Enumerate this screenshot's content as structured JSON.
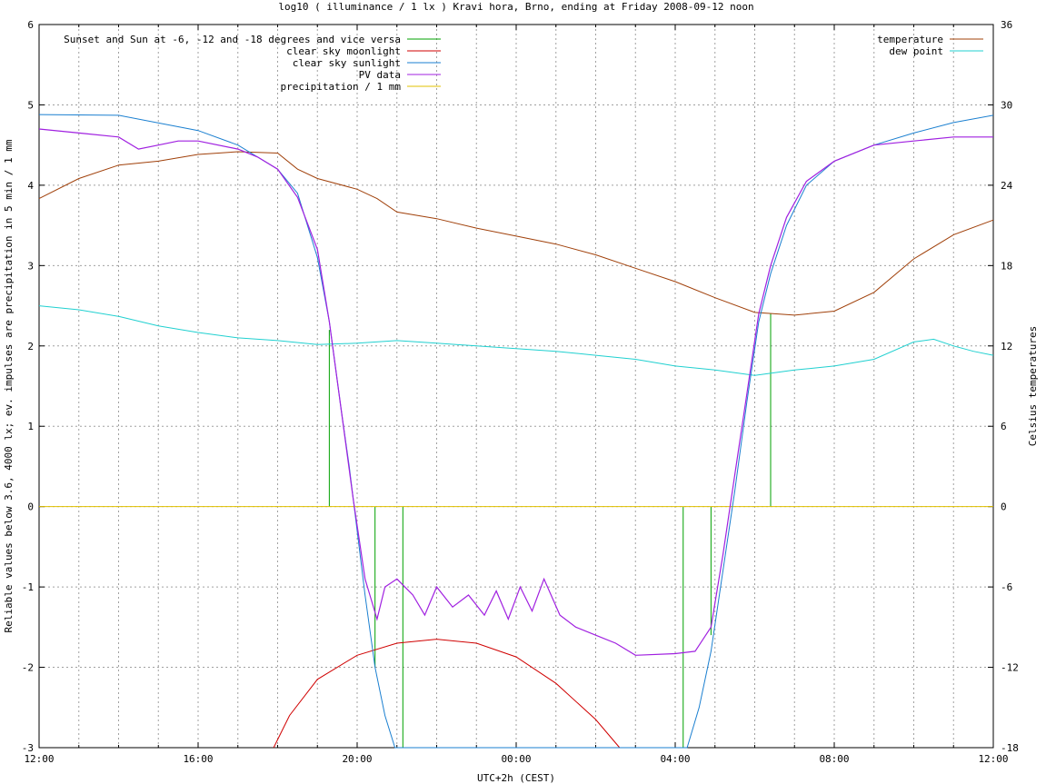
{
  "chart_data": {
    "type": "line",
    "title": "log10 ( illuminance / 1 lx ) Kravi hora, Brno, ending at Friday 2008-09-12 noon",
    "xlabel": "UTC+2h (CEST)",
    "ylabel": "Reliable values below 3.6, 4000 lx; ev. impulses are precipitation in 5 min / 1 mm",
    "y2label": "Celsius temperatures",
    "x_unit": "hours since 12:00",
    "xlim": [
      0,
      24
    ],
    "ylim": [
      -3,
      6
    ],
    "y2lim": [
      -18,
      36
    ],
    "x_tick_labels": [
      "12:00",
      "16:00",
      "20:00",
      "00:00",
      "04:00",
      "08:00",
      "12:00"
    ],
    "y_ticks": [
      "-3",
      "-2",
      "-1",
      "0",
      "1",
      "2",
      "3",
      "4",
      "5",
      "6"
    ],
    "y2_ticks": [
      "-18",
      "-12",
      "-6",
      "0",
      "6",
      "12",
      "18",
      "24",
      "30",
      "36"
    ],
    "grid": true,
    "legend_left": [
      {
        "name": "Sunset and Sun at -6, -12 and -18 degrees and vice versa",
        "color": "#00a000"
      },
      {
        "name": "clear sky moonlight",
        "color": "#d00000"
      },
      {
        "name": "clear sky sunlight",
        "color": "#1a7fd0"
      },
      {
        "name": "PV data",
        "color": "#a020e0"
      },
      {
        "name": "precipitation / 1 mm",
        "color": "#e0c000"
      }
    ],
    "legend_right": [
      {
        "name": "temperature",
        "color": "#a0400a"
      },
      {
        "name": "dew point",
        "color": "#20d0d0"
      }
    ],
    "sun_events_x": [
      7.3,
      8.45,
      9.15,
      16.2,
      16.9,
      18.4
    ],
    "series": {
      "temperature": [
        [
          0,
          23.0
        ],
        [
          1,
          24.5
        ],
        [
          2,
          25.5
        ],
        [
          3,
          25.8
        ],
        [
          4,
          26.3
        ],
        [
          5,
          26.5
        ],
        [
          6,
          26.4
        ],
        [
          6.5,
          25.2
        ],
        [
          7,
          24.5
        ],
        [
          8,
          23.7
        ],
        [
          8.5,
          23.0
        ],
        [
          9,
          22.0
        ],
        [
          10,
          21.5
        ],
        [
          11,
          20.8
        ],
        [
          12,
          20.2
        ],
        [
          13,
          19.6
        ],
        [
          14,
          18.8
        ],
        [
          15,
          17.8
        ],
        [
          16,
          16.8
        ],
        [
          17,
          15.6
        ],
        [
          18,
          14.5
        ],
        [
          19,
          14.3
        ],
        [
          20,
          14.6
        ],
        [
          21,
          16.0
        ],
        [
          22,
          18.5
        ],
        [
          23,
          20.3
        ],
        [
          24,
          21.4
        ]
      ],
      "dew_point": [
        [
          0,
          15.0
        ],
        [
          1,
          14.7
        ],
        [
          2,
          14.2
        ],
        [
          3,
          13.5
        ],
        [
          4,
          13.0
        ],
        [
          5,
          12.6
        ],
        [
          6,
          12.4
        ],
        [
          7,
          12.1
        ],
        [
          8,
          12.2
        ],
        [
          9,
          12.4
        ],
        [
          10,
          12.2
        ],
        [
          11,
          12.0
        ],
        [
          12,
          11.8
        ],
        [
          13,
          11.6
        ],
        [
          14,
          11.3
        ],
        [
          15,
          11.0
        ],
        [
          16,
          10.5
        ],
        [
          17,
          10.2
        ],
        [
          18,
          9.8
        ],
        [
          19,
          10.2
        ],
        [
          20,
          10.5
        ],
        [
          21,
          11.0
        ],
        [
          22,
          12.3
        ],
        [
          22.5,
          12.5
        ],
        [
          23,
          12.0
        ],
        [
          23.5,
          11.6
        ],
        [
          24,
          11.3
        ]
      ],
      "sunlight": [
        [
          0,
          4.88
        ],
        [
          2,
          4.87
        ],
        [
          4,
          4.68
        ],
        [
          5,
          4.5
        ],
        [
          6,
          4.2
        ],
        [
          6.5,
          3.9
        ],
        [
          7,
          3.1
        ],
        [
          7.3,
          2.3
        ],
        [
          7.6,
          1.2
        ],
        [
          7.8,
          0.5
        ],
        [
          8.0,
          -0.3
        ],
        [
          8.2,
          -1.1
        ],
        [
          8.45,
          -2.0
        ],
        [
          8.7,
          -2.6
        ],
        [
          8.95,
          -3.0
        ],
        [
          16.3,
          -3.0
        ],
        [
          16.6,
          -2.5
        ],
        [
          16.9,
          -1.8
        ],
        [
          17.2,
          -0.8
        ],
        [
          17.5,
          0.2
        ],
        [
          17.8,
          1.3
        ],
        [
          18.1,
          2.3
        ],
        [
          18.4,
          2.9
        ],
        [
          18.8,
          3.5
        ],
        [
          19.3,
          4.0
        ],
        [
          20,
          4.3
        ],
        [
          21,
          4.5
        ],
        [
          22,
          4.65
        ],
        [
          23,
          4.78
        ],
        [
          24,
          4.87
        ]
      ],
      "moonlight": [
        [
          5.9,
          -3.0
        ],
        [
          6.3,
          -2.6
        ],
        [
          7,
          -2.15
        ],
        [
          8,
          -1.85
        ],
        [
          9,
          -1.7
        ],
        [
          10,
          -1.65
        ],
        [
          11,
          -1.7
        ],
        [
          12,
          -1.87
        ],
        [
          13,
          -2.2
        ],
        [
          14,
          -2.65
        ],
        [
          14.6,
          -3.0
        ]
      ],
      "pv": [
        [
          0,
          4.7
        ],
        [
          1,
          4.65
        ],
        [
          2,
          4.6
        ],
        [
          2.5,
          4.45
        ],
        [
          3,
          4.5
        ],
        [
          3.5,
          4.55
        ],
        [
          4,
          4.55
        ],
        [
          5,
          4.45
        ],
        [
          5.5,
          4.35
        ],
        [
          6,
          4.2
        ],
        [
          6.5,
          3.85
        ],
        [
          7,
          3.2
        ],
        [
          7.3,
          2.3
        ],
        [
          7.6,
          1.2
        ],
        [
          7.9,
          0.1
        ],
        [
          8.2,
          -0.9
        ],
        [
          8.5,
          -1.4
        ],
        [
          8.7,
          -1.0
        ],
        [
          9.0,
          -0.9
        ],
        [
          9.4,
          -1.1
        ],
        [
          9.7,
          -1.35
        ],
        [
          10,
          -1.0
        ],
        [
          10.4,
          -1.25
        ],
        [
          10.8,
          -1.1
        ],
        [
          11.2,
          -1.35
        ],
        [
          11.5,
          -1.05
        ],
        [
          11.8,
          -1.4
        ],
        [
          12.1,
          -1.0
        ],
        [
          12.4,
          -1.3
        ],
        [
          12.7,
          -0.9
        ],
        [
          13.1,
          -1.35
        ],
        [
          13.5,
          -1.5
        ],
        [
          14.0,
          -1.6
        ],
        [
          14.5,
          -1.7
        ],
        [
          15.0,
          -1.85
        ],
        [
          16.0,
          -1.83
        ],
        [
          16.5,
          -1.8
        ],
        [
          16.9,
          -1.5
        ],
        [
          17.2,
          -0.6
        ],
        [
          17.5,
          0.4
        ],
        [
          17.8,
          1.4
        ],
        [
          18.1,
          2.4
        ],
        [
          18.4,
          3.0
        ],
        [
          18.8,
          3.6
        ],
        [
          19.3,
          4.05
        ],
        [
          20,
          4.3
        ],
        [
          21,
          4.5
        ],
        [
          22,
          4.55
        ],
        [
          23,
          4.6
        ],
        [
          24,
          4.6
        ]
      ]
    },
    "precipitation_mm": 0
  }
}
